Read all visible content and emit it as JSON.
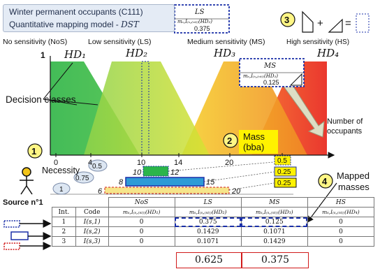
{
  "title": {
    "line1": "Winter permanent occupants (C111)",
    "line2_prefix": "Quantitative mapping model - ",
    "line2_method": "DST"
  },
  "axis": {
    "y_tick": "1",
    "x_title": "Number of occupants",
    "x_ticks": [
      "0",
      "4",
      "10",
      "14",
      "20",
      "24"
    ]
  },
  "classes": {
    "nos_label": "No sensitivity (NoS)",
    "ls_label": "Low sensitivity (LS)",
    "ms_label": "Medium sensitivity (MS)",
    "hs_label": "High sensitivity (HS)",
    "hd1": "HD₁",
    "hd2": "HD₂",
    "hd3": "HD₃",
    "hd4": "HD₄",
    "decision_label": "Decision classes"
  },
  "callouts": {
    "ls": {
      "name": "LS",
      "mass": "mₛ,I₍ₛ,₍ₙₜ₎₎(HD₂)",
      "value": "0.375"
    },
    "ms": {
      "name": "MS",
      "mass": "mₛ,I₍ₛ,₍ₙₜ₎₎(HD₃)",
      "value": "0.125"
    }
  },
  "steps": {
    "s1": "1",
    "s2": "2",
    "s3": "3",
    "s4": "4",
    "mass_label": "Mass",
    "bba_label": "(bba)",
    "mapped_label": "Mapped",
    "masses_label": "masses",
    "necessity_label": "Necessity",
    "source_label": "Source n°1"
  },
  "necessity_levels": [
    "0.5",
    "0.75",
    "1"
  ],
  "focal_sets": [
    {
      "from": "10",
      "to": "12",
      "mass": "0.5",
      "color": "#2bb54a",
      "style": "green"
    },
    {
      "from": "8",
      "to": "15",
      "mass": "0.25",
      "color": "#2e9bd6",
      "style": "blue"
    },
    {
      "from": "6",
      "to": "20",
      "mass": "0.25",
      "color": "#f6e58a",
      "style": "yellow"
    }
  ],
  "table": {
    "head_index": "Int.",
    "head_code": "Code",
    "class_heads": [
      "NoS",
      "LS",
      "MS",
      "HS"
    ],
    "class_mass_heads": [
      "mₛ,I₍ₛ,₍ₙₜ₎₎(HD₁)",
      "mₛ,I₍ₛ,₍ₙₜ₎₎(HD₂)",
      "mₛ,I₍ₛ,₍ₙₜ₎₎(HD₃)",
      "mₛ,I₍ₛ,₍ₙₜ₎₎(HD₄)"
    ],
    "rows": [
      {
        "index": "1",
        "code": "I(s,1)",
        "values": [
          "0",
          "0.375",
          "0.125",
          "0"
        ]
      },
      {
        "index": "2",
        "code": "I(s,2)",
        "values": [
          "0",
          "0.1429",
          "0.1071",
          "0"
        ]
      },
      {
        "index": "3",
        "code": "I(s,3)",
        "values": [
          "0",
          "0.1071",
          "0.1429",
          "0"
        ]
      }
    ],
    "totals": [
      "0.625",
      "0.375"
    ]
  },
  "colors": {
    "nos": "#35b84a",
    "ls": "#b9dd2d",
    "ms": "#f5a623",
    "hs": "#e8261c",
    "outline_blue": "#1a2fa8",
    "total_red": "#d11a1a",
    "yellow_badge": "#fff200"
  }
}
